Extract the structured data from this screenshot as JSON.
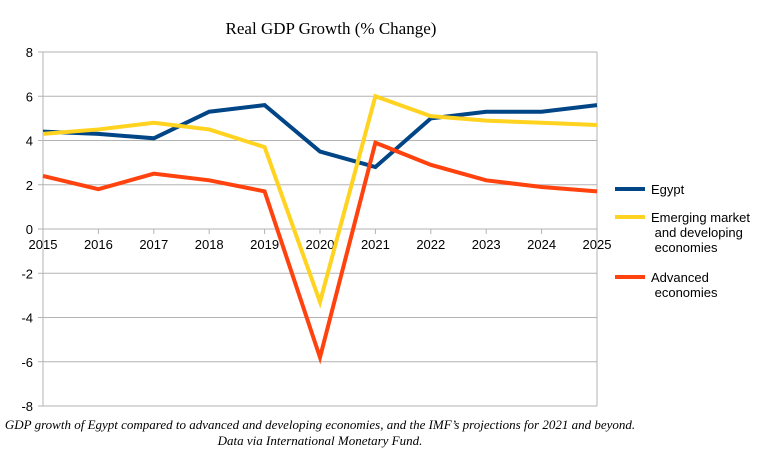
{
  "chart_data": {
    "type": "line",
    "title": "Real GDP Growth (% Change)",
    "xlabel": "",
    "ylabel": "",
    "categories": [
      "2015",
      "2016",
      "2017",
      "2018",
      "2019",
      "2020",
      "2021",
      "2022",
      "2023",
      "2024",
      "2025"
    ],
    "ylim": [
      -8,
      8
    ],
    "yticks": [
      "8",
      "6",
      "4",
      "2",
      "0",
      "-2",
      "-4",
      "-6",
      "-8"
    ],
    "grid": "horizontal",
    "legend": "right",
    "series": [
      {
        "name": "Egypt",
        "color": "#004586",
        "values": [
          4.4,
          4.3,
          4.1,
          5.3,
          5.6,
          3.5,
          2.8,
          5.0,
          5.3,
          5.3,
          5.6
        ]
      },
      {
        "name": "Emerging market and developing economies",
        "color": "#ffd320",
        "values": [
          4.3,
          4.5,
          4.8,
          4.5,
          3.7,
          -3.3,
          6.0,
          5.1,
          4.9,
          4.8,
          4.7
        ]
      },
      {
        "name": "Advanced economies",
        "color": "#ff420e",
        "values": [
          2.4,
          1.8,
          2.5,
          2.2,
          1.7,
          -5.8,
          3.9,
          2.9,
          2.2,
          1.9,
          1.7
        ]
      }
    ]
  },
  "caption": "GDP growth of Egypt compared to advanced and developing economies, and the IMF’s projections for 2021 and beyond. Data via International Monetary Fund."
}
